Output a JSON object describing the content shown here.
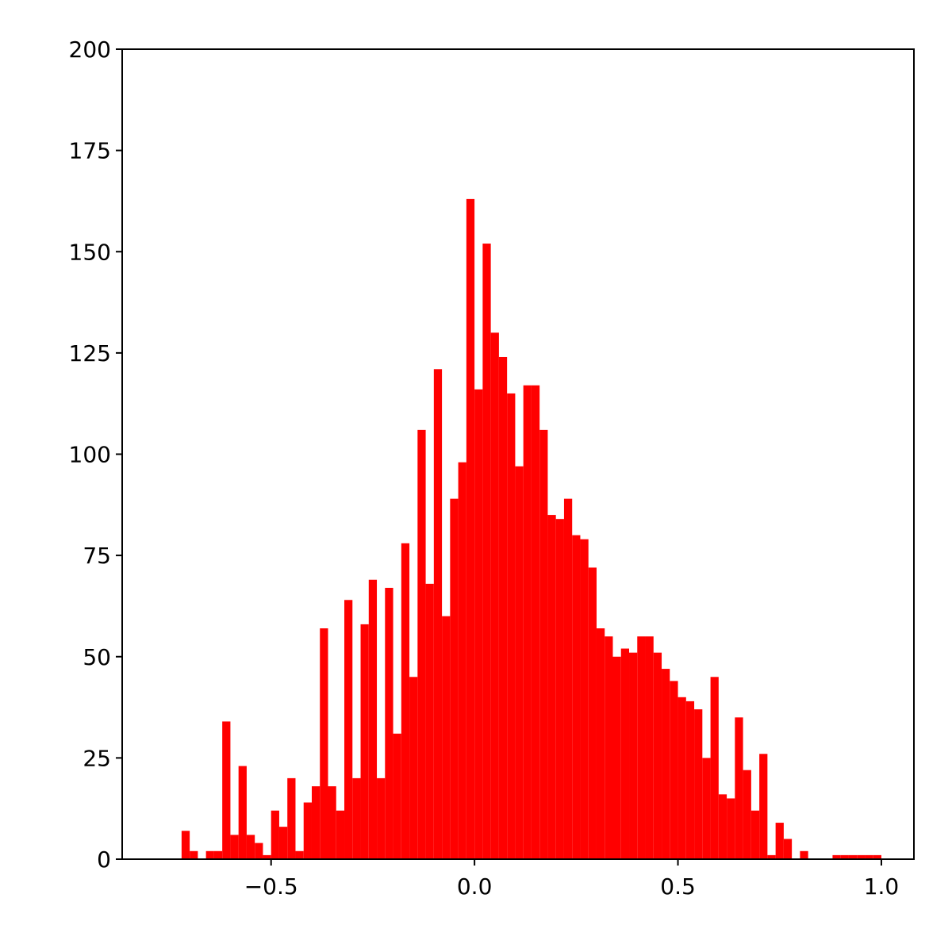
{
  "chart_data": {
    "type": "histogram",
    "color": "#ff0000",
    "bins": [
      -0.72,
      -0.7,
      -0.68,
      -0.66,
      -0.64,
      -0.62,
      -0.6,
      -0.58,
      -0.56,
      -0.54,
      -0.52,
      -0.5,
      -0.48,
      -0.46,
      -0.44,
      -0.42,
      -0.4,
      -0.38,
      -0.36,
      -0.34,
      -0.32,
      -0.3,
      -0.28,
      -0.26,
      -0.24,
      -0.22,
      -0.2,
      -0.18,
      -0.16,
      -0.14,
      -0.12,
      -0.1,
      -0.08,
      -0.06,
      -0.04,
      -0.02,
      0,
      0.02,
      0.04,
      0.06,
      0.08,
      0.1,
      0.12,
      0.14,
      0.16,
      0.18,
      0.2,
      0.22,
      0.24,
      0.26,
      0.28,
      0.3,
      0.32,
      0.34,
      0.36,
      0.38,
      0.4,
      0.42,
      0.44,
      0.46,
      0.48,
      0.5,
      0.52,
      0.54,
      0.56,
      0.58,
      0.6,
      0.62,
      0.64,
      0.66,
      0.68,
      0.7,
      0.72,
      0.74,
      0.76,
      0.78,
      0.8,
      0.82,
      0.84,
      0.86,
      0.88,
      0.9,
      0.92,
      0.94,
      0.96,
      0.98,
      1.0
    ],
    "values": [
      7,
      2,
      0,
      2,
      2,
      34,
      6,
      23,
      6,
      4,
      1,
      12,
      8,
      20,
      2,
      14,
      18,
      57,
      18,
      12,
      64,
      20,
      58,
      69,
      20,
      67,
      31,
      78,
      45,
      106,
      68,
      121,
      60,
      89,
      98,
      163,
      116,
      152,
      130,
      124,
      115,
      97,
      117,
      117,
      106,
      85,
      84,
      89,
      80,
      79,
      72,
      57,
      55,
      50,
      52,
      51,
      55,
      55,
      51,
      47,
      44,
      40,
      39,
      37,
      25,
      45,
      16,
      15,
      35,
      22,
      12,
      26,
      1,
      9,
      5,
      0,
      2,
      0,
      0,
      0,
      1,
      1,
      1,
      1,
      1,
      1
    ],
    "xlim": [
      -0.866,
      1.08
    ],
    "ylim": [
      0,
      200
    ],
    "xticks": [
      {
        "value": -0.5,
        "label": "−0.5"
      },
      {
        "value": 0,
        "label": "0.0"
      },
      {
        "value": 0.5,
        "label": "0.5"
      },
      {
        "value": 1,
        "label": "1.0"
      }
    ],
    "yticks": [
      0,
      25,
      50,
      75,
      100,
      125,
      150,
      175,
      200
    ]
  }
}
